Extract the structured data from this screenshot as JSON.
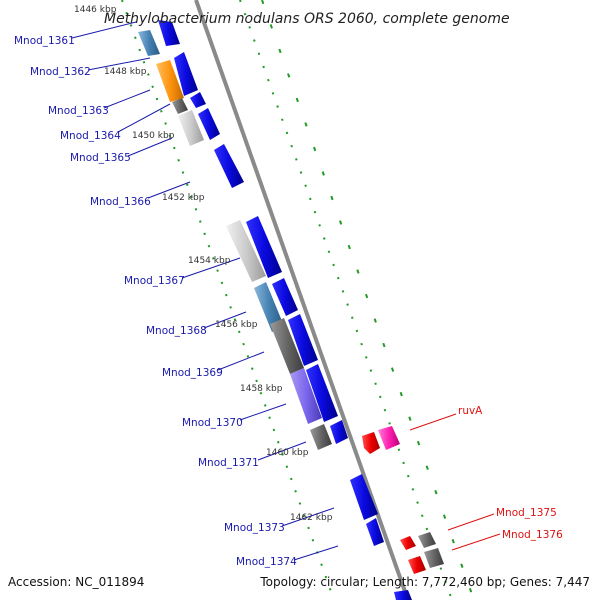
{
  "title": "Methylobacterium nodulans ORS 2060, complete genome",
  "accession": "Accession: NC_011894",
  "topology": "Topology: circular; Length: 7,772,460 bp; Genes: 7,447",
  "kbp_marks": [
    "1446 kbp",
    "1448 kbp",
    "1450 kbp",
    "1452 kbp",
    "1454 kbp",
    "1456 kbp",
    "1458 kbp",
    "1460 kbp",
    "1462 kbp"
  ],
  "genes_left": [
    "Mnod_1361",
    "Mnod_1362",
    "Mnod_1363",
    "Mnod_1364",
    "Mnod_1365",
    "Mnod_1366",
    "Mnod_1367",
    "Mnod_1368",
    "Mnod_1369",
    "Mnod_1370",
    "Mnod_1371",
    "Mnod_1373",
    "Mnod_1374"
  ],
  "genes_right": [
    "ruvA",
    "Mnod_1375",
    "Mnod_1376"
  ],
  "colors": {
    "left_label": "#1a1aaa",
    "right_label": "#dd1111",
    "backbone": "#8a8a8a",
    "tick": "#228822",
    "cds": "#0a0adc"
  }
}
